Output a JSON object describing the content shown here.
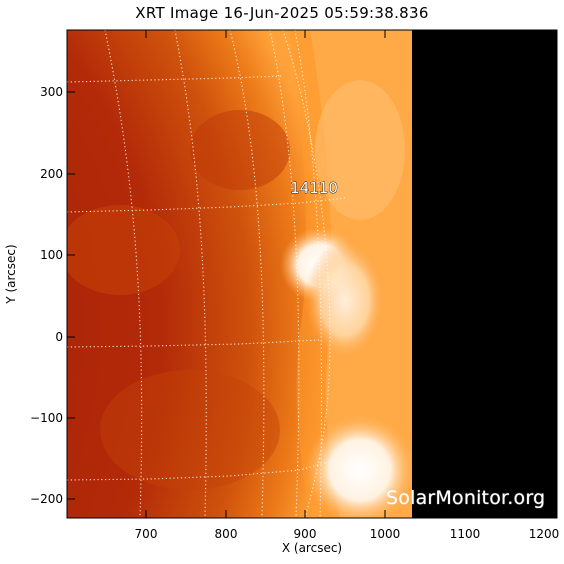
{
  "title": "XRT Image 16-Jun-2025 05:59:38.836",
  "x_axis": {
    "label": "X (arcsec)",
    "ticks": [
      "700",
      "800",
      "900",
      "1000",
      "1100",
      "1200"
    ],
    "range": [
      612,
      1240
    ]
  },
  "y_axis": {
    "label": "Y (arcsec)",
    "ticks": [
      "300",
      "200",
      "100",
      "0",
      "−100",
      "−200"
    ],
    "range": [
      -222,
      378
    ]
  },
  "active_region": "14110",
  "watermark": "SolarMonitor.org",
  "colors": {
    "sun_dark": "#a81d08",
    "sun_mid": "#c94a0b",
    "limb": "#ff9a28",
    "flare": "#fff4e8",
    "space": "#000000"
  }
}
